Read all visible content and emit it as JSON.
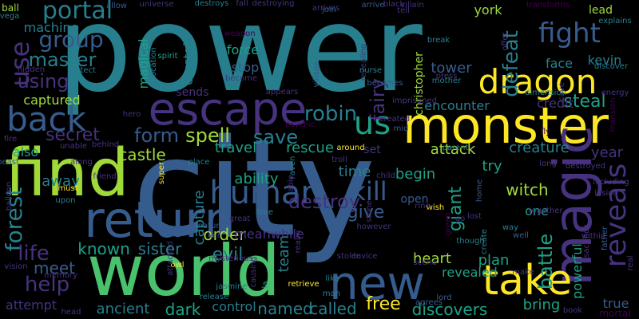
{
  "palette": {
    "background": "#000000",
    "yellow": "#fde725",
    "lightgreen": "#a0da39",
    "green": "#4ac16d",
    "teal": "#1fa187",
    "tealblue": "#277f8e",
    "blue": "#365c8d",
    "indigo": "#46327e",
    "purple": "#440154"
  },
  "words": [
    {
      "text": "power",
      "c": "tealblue"
    },
    {
      "text": "city",
      "c": "blue"
    },
    {
      "text": "world",
      "c": "green"
    },
    {
      "text": "find",
      "c": "lightgreen"
    },
    {
      "text": "monster",
      "c": "yellow"
    },
    {
      "text": "return",
      "c": "blue"
    },
    {
      "text": "escape",
      "c": "indigo"
    },
    {
      "text": "magic",
      "c": "indigo"
    },
    {
      "text": "take",
      "c": "yellow"
    },
    {
      "text": "new",
      "c": "blue"
    },
    {
      "text": "back",
      "c": "blue"
    },
    {
      "text": "dragon",
      "c": "yellow"
    },
    {
      "text": "fight",
      "c": "blue"
    },
    {
      "text": "portal",
      "c": "tealblue"
    },
    {
      "text": "human",
      "c": "blue"
    },
    {
      "text": "us",
      "c": "teal"
    },
    {
      "text": "reveals",
      "c": "indigo"
    },
    {
      "text": "group",
      "c": "blue"
    },
    {
      "text": "master",
      "c": "tealblue"
    },
    {
      "text": "use",
      "c": "indigo"
    },
    {
      "text": "using",
      "c": "indigo"
    },
    {
      "text": "defeat",
      "c": "tealblue"
    },
    {
      "text": "robin",
      "c": "tealblue"
    },
    {
      "text": "spell",
      "c": "lightgreen"
    },
    {
      "text": "form",
      "c": "blue"
    },
    {
      "text": "save",
      "c": "tealblue"
    },
    {
      "text": "fairy",
      "c": "indigo"
    },
    {
      "text": "secret",
      "c": "indigo"
    },
    {
      "text": "castle",
      "c": "lightgreen"
    },
    {
      "text": "kill",
      "c": "blue"
    },
    {
      "text": "destroy",
      "c": "indigo"
    },
    {
      "text": "forest",
      "c": "tealblue"
    },
    {
      "text": "giant",
      "c": "teal"
    },
    {
      "text": "give",
      "c": "blue"
    },
    {
      "text": "steal",
      "c": "teal"
    },
    {
      "text": "battle",
      "c": "teal"
    },
    {
      "text": "life",
      "c": "indigo"
    },
    {
      "text": "help",
      "c": "indigo"
    },
    {
      "text": "free",
      "c": "yellow"
    },
    {
      "text": "evil",
      "c": "tealblue"
    },
    {
      "text": "dark",
      "c": "teal"
    },
    {
      "text": "named",
      "c": "tealblue"
    },
    {
      "text": "called",
      "c": "tealblue"
    },
    {
      "text": "discovers",
      "c": "teal"
    },
    {
      "text": "known",
      "c": "teal"
    },
    {
      "text": "sister",
      "c": "tealblue"
    },
    {
      "text": "meet",
      "c": "blue"
    },
    {
      "text": "attempt",
      "c": "indigo"
    },
    {
      "text": "ancient",
      "c": "tealblue"
    },
    {
      "text": "control",
      "c": "tealblue"
    },
    {
      "text": "order",
      "c": "lightgreen"
    },
    {
      "text": "team",
      "c": "tealblue"
    },
    {
      "text": "capture",
      "c": "tealblue"
    },
    {
      "text": "ability",
      "c": "teal"
    },
    {
      "text": "travel",
      "c": "teal"
    },
    {
      "text": "rescue",
      "c": "teal"
    },
    {
      "text": "time",
      "c": "tealblue"
    },
    {
      "text": "begin",
      "c": "teal"
    },
    {
      "text": "witch",
      "c": "lightgreen"
    },
    {
      "text": "try",
      "c": "teal"
    },
    {
      "text": "attack",
      "c": "lightgreen"
    },
    {
      "text": "creature",
      "c": "tealblue"
    },
    {
      "text": "year",
      "c": "indigo"
    },
    {
      "text": "plan",
      "c": "teal"
    },
    {
      "text": "heart",
      "c": "lightgreen"
    },
    {
      "text": "powerful",
      "c": "teal"
    },
    {
      "text": "bring",
      "c": "teal"
    },
    {
      "text": "true",
      "c": "blue"
    },
    {
      "text": "mortal",
      "c": "purple"
    },
    {
      "text": "also",
      "c": "teal"
    },
    {
      "text": "away",
      "c": "tealblue"
    },
    {
      "text": "captured",
      "c": "lightgreen"
    },
    {
      "text": "machine",
      "c": "tealblue"
    },
    {
      "text": "crystal",
      "c": "tealblue"
    },
    {
      "text": "magical",
      "c": "teal"
    },
    {
      "text": "force",
      "c": "teal"
    },
    {
      "text": "stop",
      "c": "blue"
    },
    {
      "text": "york",
      "c": "lightgreen"
    },
    {
      "text": "tower",
      "c": "blue"
    },
    {
      "text": "kevin",
      "c": "tealblue"
    },
    {
      "text": "face",
      "c": "tealblue"
    },
    {
      "text": "credit",
      "c": "indigo"
    },
    {
      "text": "encounter",
      "c": "tealblue"
    },
    {
      "text": "lead",
      "c": "lightgreen"
    },
    {
      "text": "one",
      "c": "teal"
    },
    {
      "text": "revealed",
      "c": "teal"
    },
    {
      "text": "meanwhile",
      "c": "indigo"
    },
    {
      "text": "sends",
      "c": "indigo"
    },
    {
      "text": "set",
      "c": "indigo"
    },
    {
      "text": "open",
      "c": "blue"
    },
    {
      "text": "christopher",
      "c": "lightgreen"
    },
    {
      "text": "ball",
      "c": "lightgreen"
    },
    {
      "text": "hidden",
      "c": "indigo"
    },
    {
      "text": "protect",
      "c": "tealblue"
    },
    {
      "text": "allow",
      "c": "blue"
    },
    {
      "text": "universe",
      "c": "indigo"
    },
    {
      "text": "destroys",
      "c": "tealblue"
    },
    {
      "text": "fall",
      "c": "indigo"
    },
    {
      "text": "destroying",
      "c": "indigo"
    },
    {
      "text": "arrives",
      "c": "indigo"
    },
    {
      "text": "arrive",
      "c": "blue"
    },
    {
      "text": "black",
      "c": "indigo"
    },
    {
      "text": "villain",
      "c": "indigo"
    },
    {
      "text": "transforms",
      "c": "purple"
    },
    {
      "text": "explains",
      "c": "tealblue"
    },
    {
      "text": "discover",
      "c": "tealblue"
    },
    {
      "text": "energy",
      "c": "indigo"
    },
    {
      "text": "dimension",
      "c": "tealblue"
    },
    {
      "text": "mother",
      "c": "tealblue"
    },
    {
      "text": "press",
      "c": "indigo"
    },
    {
      "text": "break",
      "c": "tealblue"
    },
    {
      "text": "vega",
      "c": "tealblue"
    },
    {
      "text": "tell",
      "c": "indigo"
    },
    {
      "text": "join",
      "c": "blue"
    },
    {
      "text": "weapon",
      "c": "purple"
    },
    {
      "text": "location",
      "c": "tealblue"
    },
    {
      "text": "spirit",
      "c": "teal"
    },
    {
      "text": "become",
      "c": "indigo"
    },
    {
      "text": "appears",
      "c": "indigo"
    },
    {
      "text": "village",
      "c": "blue"
    },
    {
      "text": "revealing",
      "c": "indigo"
    },
    {
      "text": "nurse",
      "c": "tealblue"
    },
    {
      "text": "becomes",
      "c": "blue"
    },
    {
      "text": "imprisoned",
      "c": "indigo"
    },
    {
      "text": "created",
      "c": "indigo"
    },
    {
      "text": "psychic",
      "c": "purple"
    },
    {
      "text": "mid",
      "c": "blue"
    },
    {
      "text": "around",
      "c": "yellow"
    },
    {
      "text": "parent",
      "c": "tealblue"
    },
    {
      "text": "fly",
      "c": "purple"
    },
    {
      "text": "long",
      "c": "indigo"
    },
    {
      "text": "destroyed",
      "c": "indigo"
    },
    {
      "text": "including",
      "c": "indigo"
    },
    {
      "text": "inside",
      "c": "indigo"
    },
    {
      "text": "together",
      "c": "indigo"
    },
    {
      "text": "within",
      "c": "indigo"
    },
    {
      "text": "way",
      "c": "tealblue"
    },
    {
      "text": "well",
      "c": "blue"
    },
    {
      "text": "sacrifice",
      "c": "indigo"
    },
    {
      "text": "real",
      "c": "indigo"
    },
    {
      "text": "book",
      "c": "indigo"
    },
    {
      "text": "make",
      "c": "indigo"
    },
    {
      "text": "lord",
      "c": "blue"
    },
    {
      "text": "agrees",
      "c": "blue"
    },
    {
      "text": "scene",
      "c": "indigo"
    },
    {
      "text": "though",
      "c": "tealblue"
    },
    {
      "text": "wish",
      "c": "yellow"
    },
    {
      "text": "however",
      "c": "indigo"
    },
    {
      "text": "stone",
      "c": "indigo"
    },
    {
      "text": "realm",
      "c": "indigo"
    },
    {
      "text": "stolen",
      "c": "indigo"
    },
    {
      "text": "device",
      "c": "indigo"
    },
    {
      "text": "like",
      "c": "tealblue"
    },
    {
      "text": "man",
      "c": "tealblue"
    },
    {
      "text": "retrieve",
      "c": "yellow"
    },
    {
      "text": "la",
      "c": "teal"
    },
    {
      "text": "jasmine",
      "c": "tealblue"
    },
    {
      "text": "release",
      "c": "tealblue"
    },
    {
      "text": "causing",
      "c": "indigo"
    },
    {
      "text": "mysterious",
      "c": "indigo"
    },
    {
      "text": "owl",
      "c": "yellow"
    },
    {
      "text": "attacked",
      "c": "indigo"
    },
    {
      "text": "lair",
      "c": "indigo"
    },
    {
      "text": "place",
      "c": "tealblue"
    },
    {
      "text": "super",
      "c": "yellow"
    },
    {
      "text": "friend",
      "c": "indigo"
    },
    {
      "text": "must",
      "c": "yellow"
    },
    {
      "text": "upon",
      "c": "tealblue"
    },
    {
      "text": "along",
      "c": "indigo"
    },
    {
      "text": "behind",
      "c": "indigo"
    },
    {
      "text": "unable",
      "c": "indigo"
    },
    {
      "text": "fire",
      "c": "indigo"
    },
    {
      "text": "beast",
      "c": "blue"
    },
    {
      "text": "balloon",
      "c": "indigo"
    },
    {
      "text": "vision",
      "c": "indigo"
    },
    {
      "text": "memory",
      "c": "indigo"
    },
    {
      "text": "head",
      "c": "indigo"
    },
    {
      "text": "hero",
      "c": "indigo"
    },
    {
      "text": "tree",
      "c": "tealblue"
    },
    {
      "text": "great",
      "c": "indigo"
    },
    {
      "text": "nature",
      "c": "blue"
    },
    {
      "text": "raven",
      "c": "tealblue"
    },
    {
      "text": "troll",
      "c": "indigo"
    },
    {
      "text": "child",
      "c": "indigo"
    },
    {
      "text": "home",
      "c": "blue"
    },
    {
      "text": "green",
      "c": "purple"
    },
    {
      "text": "lost",
      "c": "indigo"
    },
    {
      "text": "go",
      "c": "indigo"
    },
    {
      "text": "create",
      "c": "tealblue"
    },
    {
      "text": "ring",
      "c": "indigo"
    },
    {
      "text": "offer",
      "c": "indigo"
    },
    {
      "text": "cave",
      "c": "indigo"
    },
    {
      "text": "able",
      "c": "indigo"
    },
    {
      "text": "mansion",
      "c": "purple"
    },
    {
      "text": "father",
      "c": "blue"
    },
    {
      "text": "existence",
      "c": "purple"
    }
  ]
}
